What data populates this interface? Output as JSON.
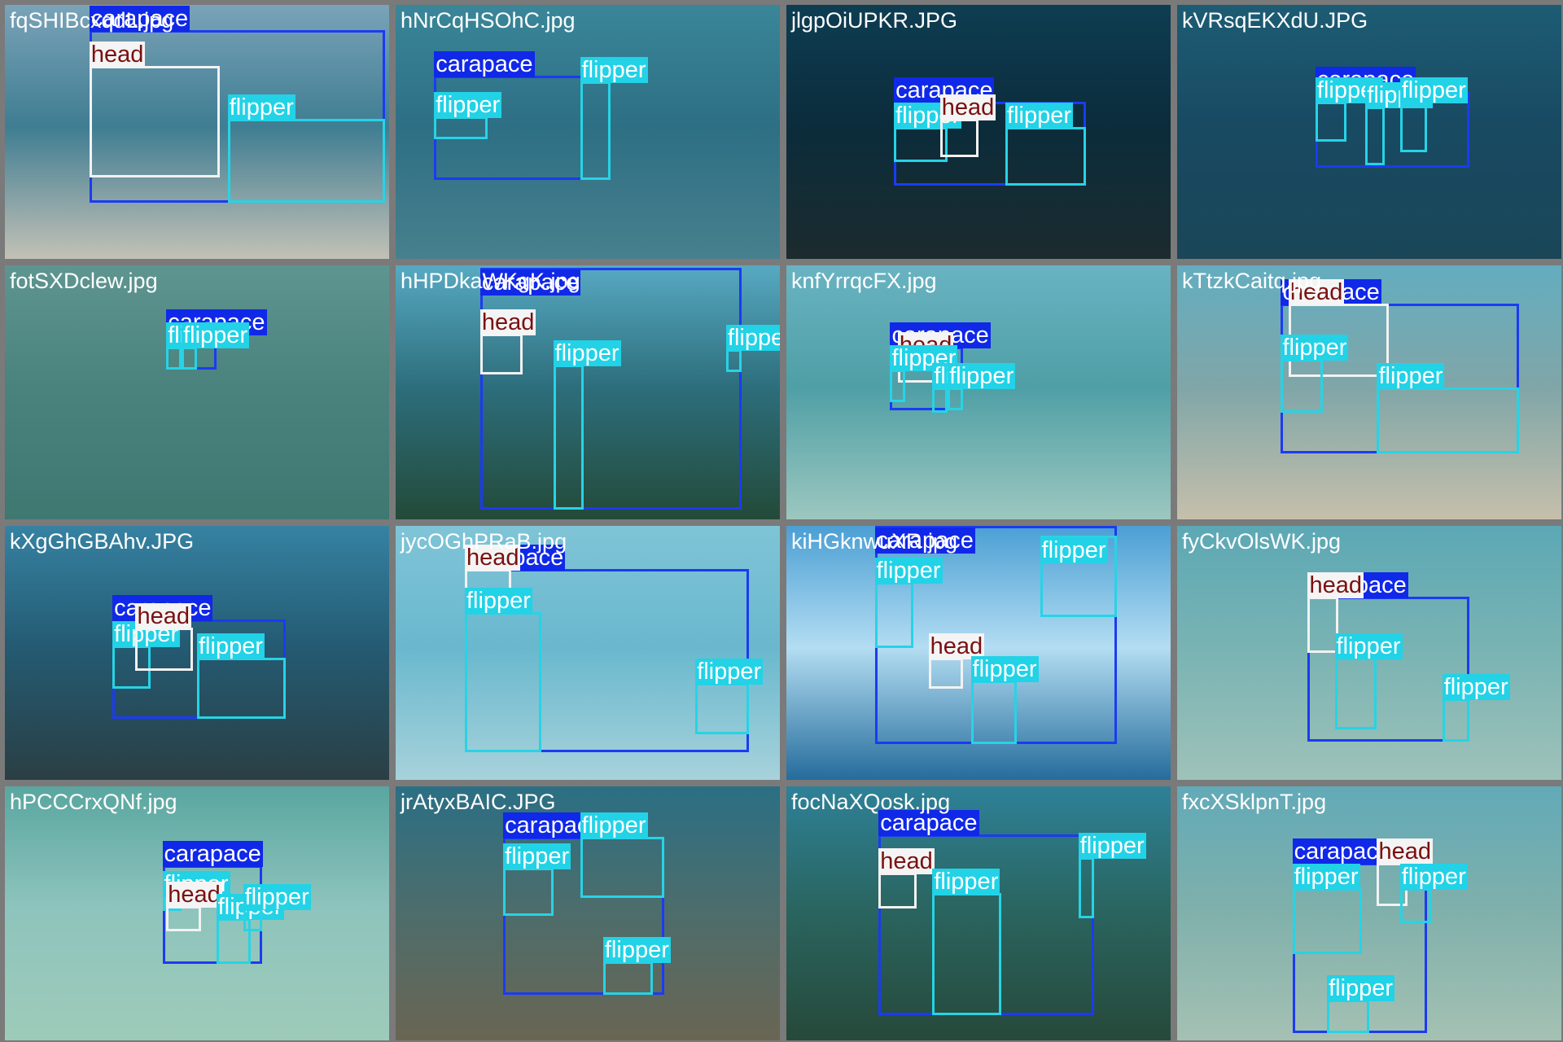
{
  "classes": {
    "carapace": {
      "box": "#1b3bf2",
      "bg": "#1028e8",
      "fg": "#ffffff"
    },
    "flipper": {
      "box": "#27d3e6",
      "bg": "#22d2e6",
      "fg": "#ffffff"
    },
    "head": {
      "box": "#f2f2f2",
      "bg": "#f4f4f4",
      "fg": "#7a1010"
    }
  },
  "label_text": {
    "carapace": "carapace",
    "flipper": "flipper",
    "head": "head"
  },
  "tiles": [
    {
      "file": "fqSHIBcxqdL.jpg",
      "bg": [
        "#7aa3b8",
        "#3f7d92",
        "#c3c1b6"
      ],
      "dets": [
        {
          "cls": "carapace",
          "b": [
            0.22,
            0.1,
            0.99,
            0.78
          ]
        },
        {
          "cls": "head",
          "b": [
            0.22,
            0.24,
            0.56,
            0.68
          ]
        },
        {
          "cls": "flipper",
          "b": [
            0.58,
            0.45,
            0.99,
            0.78
          ]
        }
      ]
    },
    {
      "file": "hNrCqHSOhC.jpg",
      "bg": [
        "#3a8699",
        "#2d6f84",
        "#47808e"
      ],
      "dets": [
        {
          "cls": "carapace",
          "b": [
            0.1,
            0.28,
            0.56,
            0.69
          ]
        },
        {
          "cls": "flipper",
          "b": [
            0.1,
            0.44,
            0.24,
            0.53
          ]
        },
        {
          "cls": "head",
          "b": [
            0.48,
            0.3,
            0.56,
            0.69
          ]
        },
        {
          "cls": "flipper",
          "b": [
            0.48,
            0.3,
            0.56,
            0.69
          ]
        }
      ]
    },
    {
      "file": "jlgpOiUPKR.JPG",
      "bg": [
        "#0e3d52",
        "#0b2c3b",
        "#1c2b2e"
      ],
      "dets": [
        {
          "cls": "carapace",
          "b": [
            0.28,
            0.38,
            0.78,
            0.71
          ]
        },
        {
          "cls": "flipper",
          "b": [
            0.28,
            0.48,
            0.42,
            0.62
          ]
        },
        {
          "cls": "head",
          "b": [
            0.4,
            0.45,
            0.5,
            0.6
          ]
        },
        {
          "cls": "flipper",
          "b": [
            0.57,
            0.48,
            0.78,
            0.71
          ]
        }
      ]
    },
    {
      "file": "kVRsqEKXdU.JPG",
      "bg": [
        "#1d5c74",
        "#184a62",
        "#1a4658"
      ],
      "dets": [
        {
          "cls": "carapace",
          "b": [
            0.36,
            0.34,
            0.76,
            0.64
          ]
        },
        {
          "cls": "flipper",
          "b": [
            0.36,
            0.38,
            0.44,
            0.54
          ]
        },
        {
          "cls": "flipper",
          "b": [
            0.49,
            0.4,
            0.54,
            0.63
          ]
        },
        {
          "cls": "flipper",
          "b": [
            0.58,
            0.38,
            0.65,
            0.58
          ]
        }
      ]
    },
    {
      "file": "fotSXDclew.jpg",
      "bg": [
        "#5f9590",
        "#4a827e",
        "#3f7771"
      ],
      "dets": [
        {
          "cls": "carapace",
          "b": [
            0.42,
            0.27,
            0.55,
            0.41
          ]
        },
        {
          "cls": "flipper",
          "b": [
            0.42,
            0.32,
            0.46,
            0.41
          ]
        },
        {
          "cls": "flipper",
          "b": [
            0.46,
            0.32,
            0.5,
            0.41
          ]
        }
      ]
    },
    {
      "file": "hHPDkaWKgK.jpg",
      "bg": [
        "#57a9c2",
        "#2d6e7c",
        "#234a39"
      ],
      "dets": [
        {
          "cls": "carapace",
          "b": [
            0.22,
            0.01,
            0.9,
            0.96
          ]
        },
        {
          "cls": "head",
          "b": [
            0.22,
            0.27,
            0.33,
            0.43
          ]
        },
        {
          "cls": "flipper",
          "b": [
            0.41,
            0.39,
            0.49,
            0.96
          ]
        },
        {
          "cls": "flipper",
          "b": [
            0.86,
            0.33,
            0.9,
            0.42
          ]
        }
      ]
    },
    {
      "file": "knfYrrqcFX.jpg",
      "bg": [
        "#69b3c2",
        "#4f9fa6",
        "#9cc7bf"
      ],
      "dets": [
        {
          "cls": "carapace",
          "b": [
            0.27,
            0.32,
            0.46,
            0.57
          ]
        },
        {
          "cls": "head",
          "b": [
            0.29,
            0.36,
            0.39,
            0.46
          ]
        },
        {
          "cls": "flipper",
          "b": [
            0.27,
            0.41,
            0.31,
            0.54
          ]
        },
        {
          "cls": "flipper",
          "b": [
            0.38,
            0.48,
            0.42,
            0.58
          ]
        },
        {
          "cls": "flipper",
          "b": [
            0.42,
            0.48,
            0.46,
            0.57
          ]
        }
      ]
    },
    {
      "file": "kTtzkCaitq.jpg",
      "bg": [
        "#63adc0",
        "#80a6a8",
        "#c6bfab"
      ],
      "dets": [
        {
          "cls": "carapace",
          "b": [
            0.27,
            0.15,
            0.89,
            0.74
          ]
        },
        {
          "cls": "head",
          "b": [
            0.29,
            0.15,
            0.55,
            0.44
          ]
        },
        {
          "cls": "flipper",
          "b": [
            0.27,
            0.37,
            0.38,
            0.58
          ]
        },
        {
          "cls": "flipper",
          "b": [
            0.52,
            0.48,
            0.89,
            0.74
          ]
        }
      ]
    },
    {
      "file": "kXgGhGBAhv.JPG",
      "bg": [
        "#3682a2",
        "#245a72",
        "#2a3f44"
      ],
      "dets": [
        {
          "cls": "carapace",
          "b": [
            0.28,
            0.37,
            0.73,
            0.76
          ]
        },
        {
          "cls": "flipper",
          "b": [
            0.28,
            0.47,
            0.38,
            0.64
          ]
        },
        {
          "cls": "head",
          "b": [
            0.34,
            0.4,
            0.49,
            0.57
          ]
        },
        {
          "cls": "flipper",
          "b": [
            0.5,
            0.52,
            0.73,
            0.76
          ]
        }
      ]
    },
    {
      "file": "jycOGhPRaB.jpg",
      "bg": [
        "#7fc4d7",
        "#6ab8ce",
        "#a7d2db"
      ],
      "dets": [
        {
          "cls": "carapace",
          "b": [
            0.18,
            0.17,
            0.92,
            0.89
          ]
        },
        {
          "cls": "head",
          "b": [
            0.18,
            0.17,
            0.3,
            0.32
          ]
        },
        {
          "cls": "flipper",
          "b": [
            0.18,
            0.34,
            0.38,
            0.89
          ]
        },
        {
          "cls": "flipper",
          "b": [
            0.78,
            0.62,
            0.92,
            0.82
          ]
        }
      ]
    },
    {
      "file": "kiHGknwuXR.jpg",
      "bg": [
        "#4b9fd4",
        "#b3ddf2",
        "#256c9c"
      ],
      "dets": [
        {
          "cls": "carapace",
          "b": [
            0.23,
            0.0,
            0.86,
            0.86
          ]
        },
        {
          "cls": "flipper",
          "b": [
            0.23,
            0.22,
            0.33,
            0.48
          ]
        },
        {
          "cls": "flipper",
          "b": [
            0.66,
            0.04,
            0.86,
            0.36
          ]
        },
        {
          "cls": "head",
          "b": [
            0.37,
            0.52,
            0.46,
            0.64
          ]
        },
        {
          "cls": "flipper",
          "b": [
            0.48,
            0.61,
            0.6,
            0.86
          ]
        }
      ]
    },
    {
      "file": "fyCkvOlsWK.jpg",
      "bg": [
        "#5ca8b5",
        "#79b3b3",
        "#9ec2b9"
      ],
      "dets": [
        {
          "cls": "carapace",
          "b": [
            0.34,
            0.28,
            0.76,
            0.85
          ]
        },
        {
          "cls": "head",
          "b": [
            0.34,
            0.28,
            0.42,
            0.5
          ]
        },
        {
          "cls": "flipper",
          "b": [
            0.41,
            0.52,
            0.52,
            0.8
          ]
        },
        {
          "cls": "flipper",
          "b": [
            0.69,
            0.68,
            0.76,
            0.85
          ]
        }
      ]
    },
    {
      "file": "hPCCCrxQNf.jpg",
      "bg": [
        "#5aa6a0",
        "#8ec4bd",
        "#9ecbb9"
      ],
      "dets": [
        {
          "cls": "carapace",
          "b": [
            0.41,
            0.31,
            0.67,
            0.7
          ]
        },
        {
          "cls": "flipper",
          "b": [
            0.41,
            0.43,
            0.46,
            0.49
          ]
        },
        {
          "cls": "head",
          "b": [
            0.42,
            0.47,
            0.51,
            0.57
          ]
        },
        {
          "cls": "flipper",
          "b": [
            0.55,
            0.52,
            0.64,
            0.7
          ]
        },
        {
          "cls": "flipper",
          "b": [
            0.62,
            0.48,
            0.67,
            0.57
          ]
        }
      ]
    },
    {
      "file": "jrAtyxBAIC.JPG",
      "bg": [
        "#2b6f84",
        "#4c6d6c",
        "#6a6553"
      ],
      "dets": [
        {
          "cls": "carapace",
          "b": [
            0.28,
            0.2,
            0.7,
            0.82
          ]
        },
        {
          "cls": "flipper",
          "b": [
            0.48,
            0.2,
            0.7,
            0.44
          ]
        },
        {
          "cls": "flipper",
          "b": [
            0.28,
            0.32,
            0.41,
            0.51
          ]
        },
        {
          "cls": "flipper",
          "b": [
            0.54,
            0.69,
            0.67,
            0.82
          ]
        }
      ]
    },
    {
      "file": "focNaXQosk.jpg",
      "bg": [
        "#2e8198",
        "#2a6560",
        "#26493a"
      ],
      "dets": [
        {
          "cls": "carapace",
          "b": [
            0.24,
            0.19,
            0.8,
            0.9
          ]
        },
        {
          "cls": "head",
          "b": [
            0.24,
            0.34,
            0.34,
            0.48
          ]
        },
        {
          "cls": "flipper",
          "b": [
            0.38,
            0.42,
            0.56,
            0.9
          ]
        },
        {
          "cls": "flipper",
          "b": [
            0.76,
            0.28,
            0.8,
            0.52
          ]
        }
      ]
    },
    {
      "file": "fxcXSklpnT.jpg",
      "bg": [
        "#62aab8",
        "#7fb0ab",
        "#a5c1b3"
      ],
      "dets": [
        {
          "cls": "carapace",
          "b": [
            0.3,
            0.3,
            0.65,
            0.97
          ]
        },
        {
          "cls": "head",
          "b": [
            0.52,
            0.3,
            0.6,
            0.47
          ]
        },
        {
          "cls": "flipper",
          "b": [
            0.3,
            0.4,
            0.48,
            0.66
          ]
        },
        {
          "cls": "flipper",
          "b": [
            0.58,
            0.4,
            0.66,
            0.54
          ]
        },
        {
          "cls": "flipper",
          "b": [
            0.39,
            0.84,
            0.5,
            0.97
          ]
        }
      ]
    }
  ]
}
